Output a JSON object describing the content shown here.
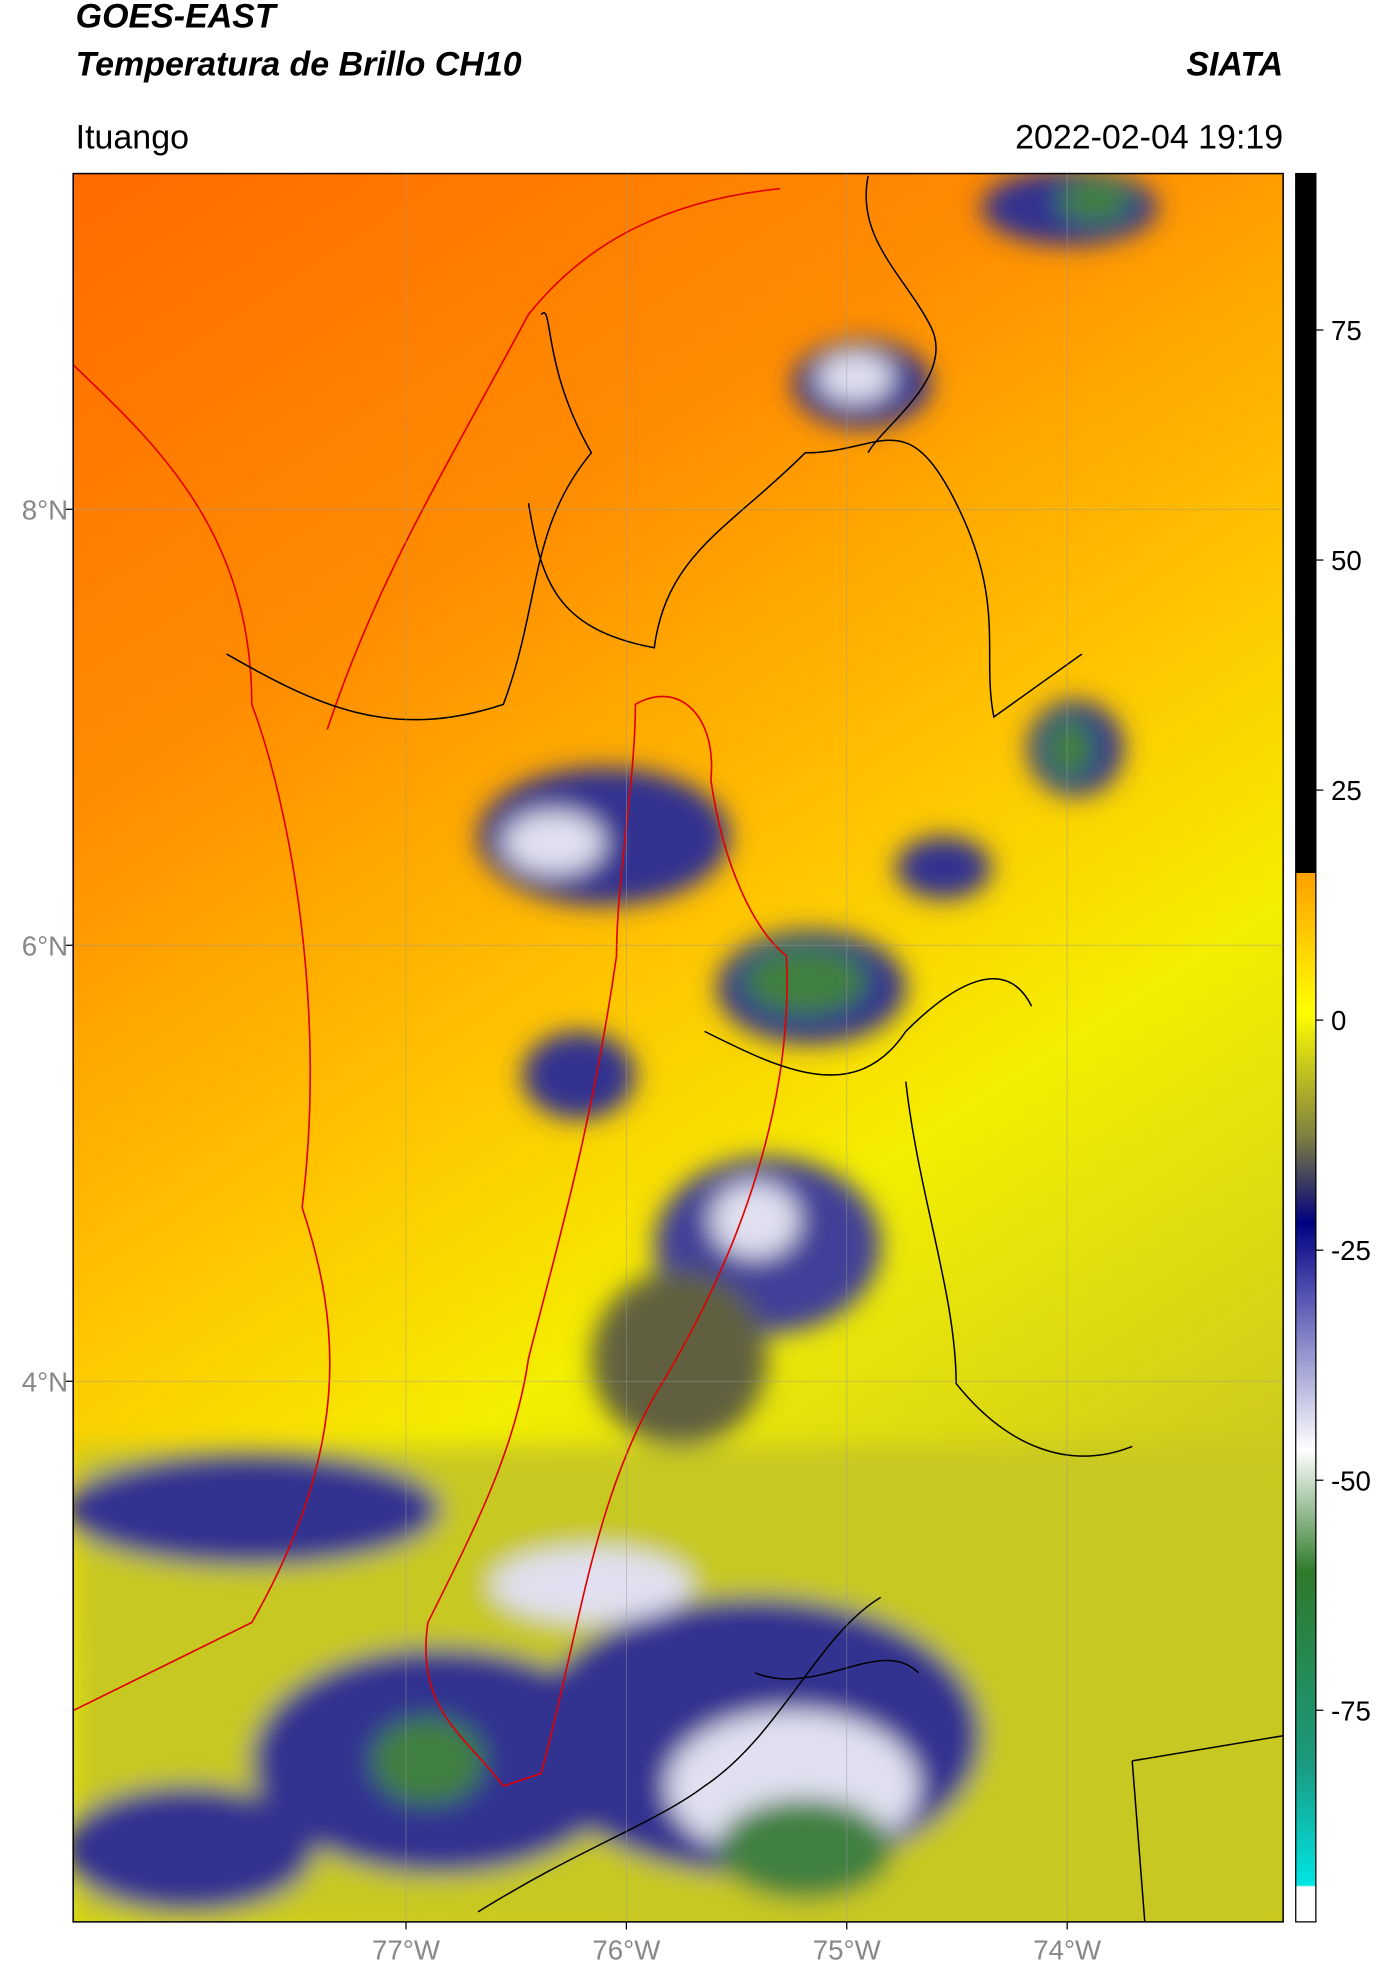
{
  "header": {
    "title": "GOES-EAST",
    "subtitle": "Temperatura de Brillo CH10",
    "brand": "SIATA",
    "location": "Ituango",
    "timestamp": "2022-02-04 19:19"
  },
  "map": {
    "xlim": [
      -78.51,
      -73.02
    ],
    "ylim": [
      1.52,
      9.54
    ],
    "xticks": [
      {
        "value": -77,
        "label": "77°W"
      },
      {
        "value": -76,
        "label": "76°W"
      },
      {
        "value": -75,
        "label": "75°W"
      },
      {
        "value": -74,
        "label": "74°W"
      }
    ],
    "yticks": [
      {
        "value": 8,
        "label": "8°N"
      },
      {
        "value": 6,
        "label": "6°N"
      },
      {
        "value": 4,
        "label": "4°N"
      }
    ],
    "grid": true
  },
  "colorbar": {
    "lim": [
      -98,
      92
    ],
    "ticks": [
      75,
      50,
      25,
      0,
      -25,
      -50,
      -75
    ]
  }
}
